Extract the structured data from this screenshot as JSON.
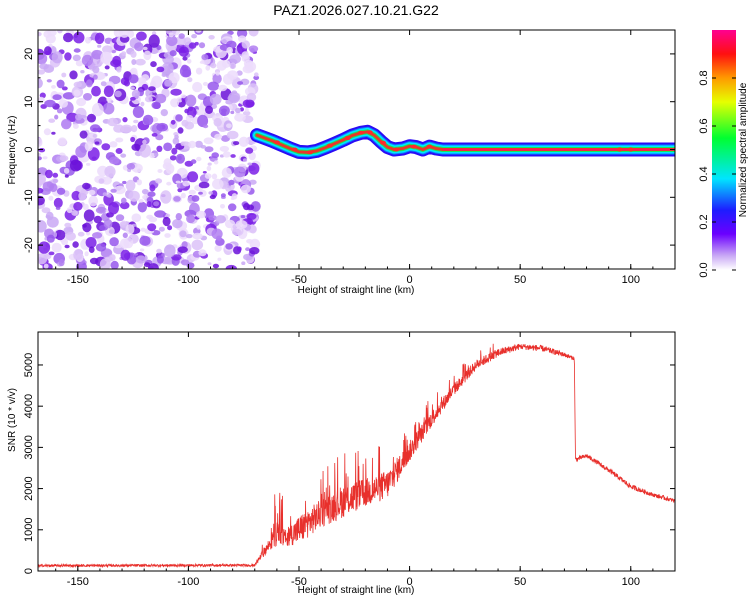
{
  "title": "PAZ1.2026.027.10.21.G22",
  "colors": {
    "snr_line": "#e8302c",
    "noise": "#7a1fe6",
    "axis": "#000000"
  },
  "chart_data": [
    {
      "type": "heatmap",
      "name": "spectrogram",
      "xlabel": "Height of straight line (km)",
      "ylabel": "Frequency (Hz)",
      "xlim": [
        -168,
        120
      ],
      "ylim": [
        -25,
        25
      ],
      "xticks": [
        -150,
        -100,
        -50,
        0,
        50,
        100
      ],
      "yticks": [
        -20,
        -10,
        0,
        10,
        20
      ],
      "noise_region_x": [
        -168,
        -69
      ],
      "signal_track": [
        {
          "x": -69,
          "y": 3
        },
        {
          "x": -66,
          "y": 2.5
        },
        {
          "x": -62,
          "y": 1.8
        },
        {
          "x": -58,
          "y": 1.0
        },
        {
          "x": -54,
          "y": 0.2
        },
        {
          "x": -50,
          "y": -0.5
        },
        {
          "x": -46,
          "y": -0.6
        },
        {
          "x": -42,
          "y": -0.3
        },
        {
          "x": -38,
          "y": 0.4
        },
        {
          "x": -34,
          "y": 1.2
        },
        {
          "x": -30,
          "y": 2.0
        },
        {
          "x": -26,
          "y": 2.9
        },
        {
          "x": -22,
          "y": 3.5
        },
        {
          "x": -19,
          "y": 3.7
        },
        {
          "x": -16,
          "y": 3.0
        },
        {
          "x": -13,
          "y": 1.7
        },
        {
          "x": -10,
          "y": 0.5
        },
        {
          "x": -7,
          "y": 0.0
        },
        {
          "x": -3,
          "y": 0.2
        },
        {
          "x": 0,
          "y": 0.7
        },
        {
          "x": 3,
          "y": 0.5
        },
        {
          "x": 6,
          "y": 0.0
        },
        {
          "x": 9,
          "y": 0.6
        },
        {
          "x": 12,
          "y": 0.2
        },
        {
          "x": 15,
          "y": 0.0
        },
        {
          "x": 120,
          "y": 0.0
        }
      ],
      "colorbar": {
        "label": "Normalized spectral amplitude",
        "range": [
          0,
          1
        ],
        "ticks": [
          0.0,
          0.2,
          0.4,
          0.6,
          0.8
        ],
        "tick_labels": [
          "0.0",
          "0.2",
          "0.4",
          "0.6",
          "0.8"
        ]
      }
    },
    {
      "type": "line",
      "name": "snr",
      "xlabel": "Height of straight line (km)",
      "ylabel": "SNR (10 * v/v)",
      "xlim": [
        -168,
        120
      ],
      "ylim": [
        0,
        5800
      ],
      "xticks": [
        -150,
        -100,
        -50,
        0,
        50,
        100
      ],
      "yticks": [
        0,
        1000,
        2000,
        3000,
        4000,
        5000
      ],
      "envelope": {
        "x": [
          -168,
          -70,
          -64,
          -60,
          -56,
          -50,
          -40,
          -30,
          -20,
          -10,
          0,
          10,
          20,
          30,
          40,
          50,
          60,
          70,
          74.5,
          75,
          80,
          90,
          100,
          110,
          120
        ],
        "base": [
          130,
          140,
          600,
          900,
          800,
          1000,
          1400,
          1700,
          1900,
          2100,
          2900,
          3700,
          4400,
          5000,
          5300,
          5450,
          5400,
          5250,
          5150,
          2700,
          2800,
          2450,
          2050,
          1850,
          1700
        ],
        "amp": [
          60,
          60,
          300,
          600,
          400,
          700,
          700,
          800,
          700,
          700,
          500,
          400,
          300,
          250,
          200,
          150,
          150,
          120,
          80,
          120,
          100,
          120,
          120,
          100,
          100
        ]
      }
    }
  ]
}
